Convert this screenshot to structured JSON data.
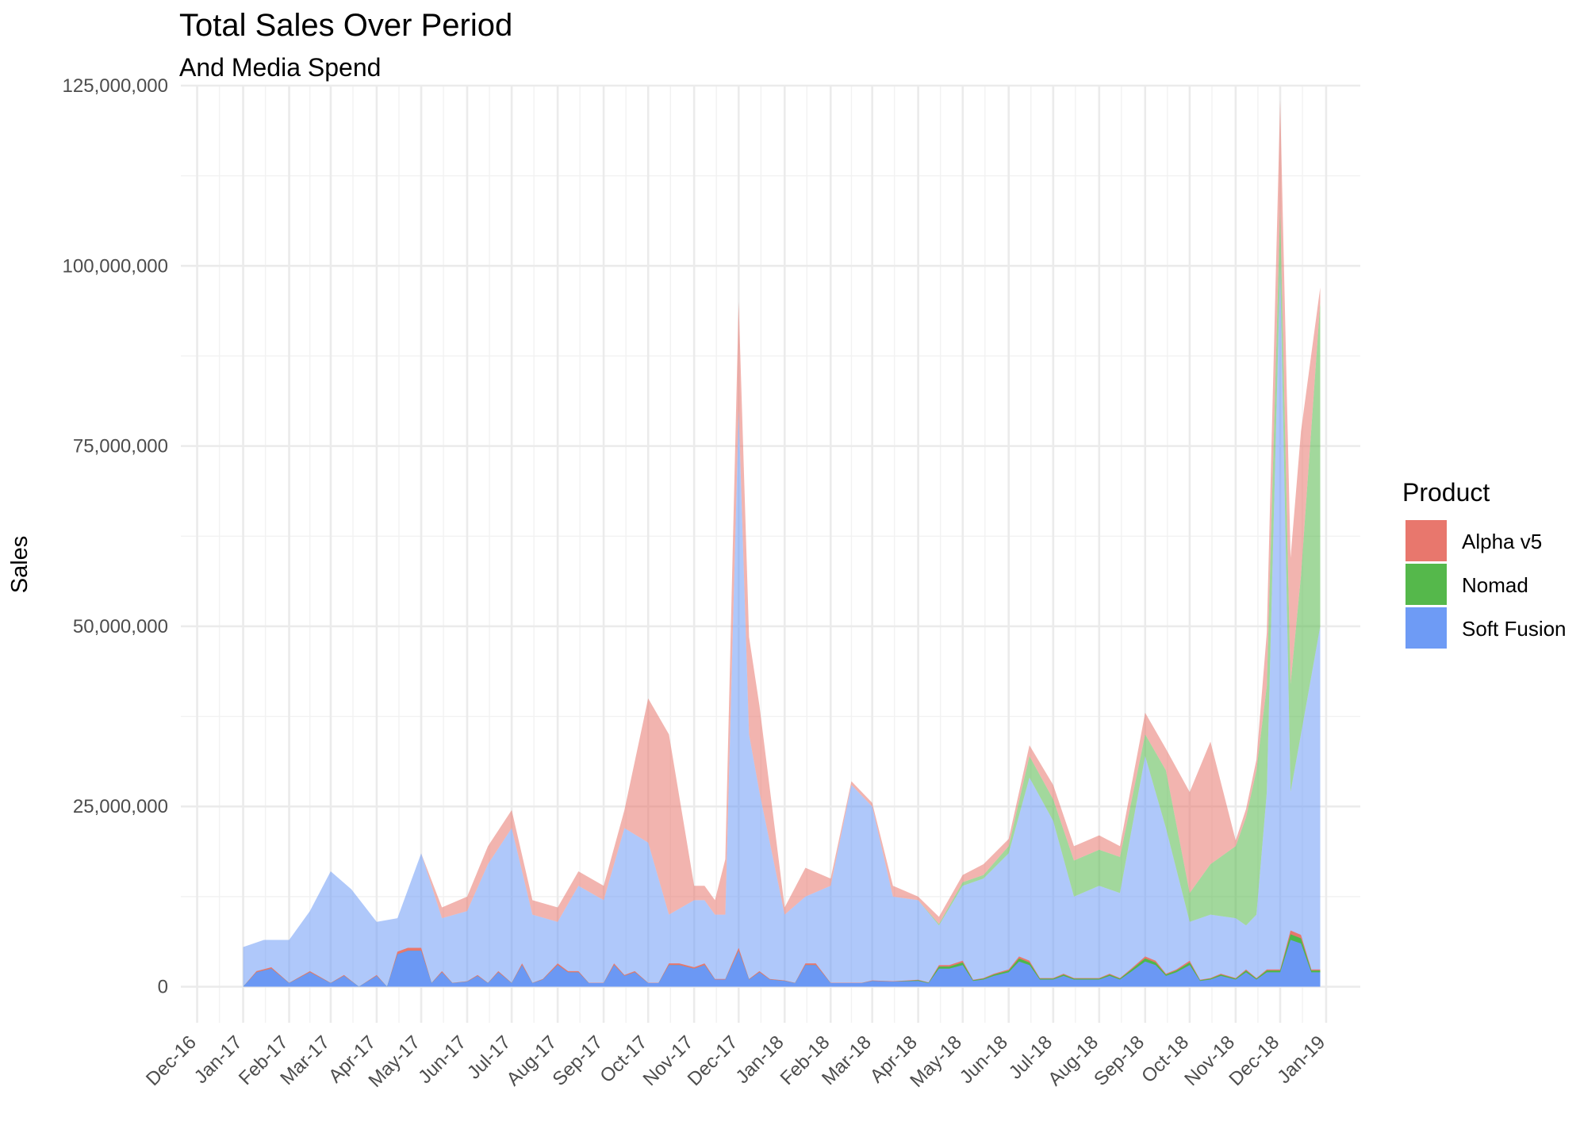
{
  "chart_data": {
    "type": "area",
    "title": "Total Sales Over Period",
    "subtitle": "And Media Spend",
    "xlabel": "",
    "ylabel": "Sales",
    "ylim": [
      -5000000,
      125000000
    ],
    "y_ticks": [
      0,
      25000000,
      50000000,
      75000000,
      100000000,
      125000000
    ],
    "y_tick_labels": [
      "0",
      "25,000,000",
      "50,000,000",
      "75,000,000",
      "100,000,000",
      "125,000,000"
    ],
    "x_ticks": [
      "2016-12-01",
      "2017-01-01",
      "2017-02-01",
      "2017-03-01",
      "2017-04-01",
      "2017-05-01",
      "2017-06-01",
      "2017-07-01",
      "2017-08-01",
      "2017-09-01",
      "2017-10-01",
      "2017-11-01",
      "2017-12-01",
      "2018-01-01",
      "2018-02-01",
      "2018-03-01",
      "2018-04-01",
      "2018-05-01",
      "2018-06-01",
      "2018-07-01",
      "2018-08-01",
      "2018-09-01",
      "2018-10-01",
      "2018-11-01",
      "2018-12-01",
      "2019-01-01"
    ],
    "x_tick_labels": [
      "Dec-16",
      "Jan-17",
      "Feb-17",
      "Mar-17",
      "Apr-17",
      "May-17",
      "Jun-17",
      "Jul-17",
      "Aug-17",
      "Sep-17",
      "Oct-17",
      "Nov-17",
      "Dec-17",
      "Jan-18",
      "Feb-18",
      "Mar-18",
      "Apr-18",
      "May-18",
      "Jun-18",
      "Jul-18",
      "Aug-18",
      "Sep-18",
      "Oct-18",
      "Nov-18",
      "Dec-18",
      "Jan-19"
    ],
    "grid": true,
    "stacked": true,
    "legend": {
      "title": "Product",
      "position": "right"
    },
    "series": [
      {
        "name": "Alpha v5",
        "color": "#e8776d",
        "fill_opacity": 0.55,
        "x": [
          "2017-01-01",
          "2017-03-01",
          "2017-05-01",
          "2017-05-15",
          "2017-06-01",
          "2017-06-15",
          "2017-07-01",
          "2017-07-15",
          "2017-08-01",
          "2017-08-15",
          "2017-09-01",
          "2017-09-15",
          "2017-10-01",
          "2017-10-15",
          "2017-11-01",
          "2017-11-15",
          "2017-12-01",
          "2017-12-15",
          "2018-01-01",
          "2018-01-15",
          "2018-02-01",
          "2018-02-15",
          "2018-03-01",
          "2018-03-15",
          "2018-04-01",
          "2018-04-15",
          "2018-05-01",
          "2018-05-15",
          "2018-06-01",
          "2018-06-15",
          "2018-07-01",
          "2018-07-15",
          "2018-08-01",
          "2018-08-15",
          "2018-09-01",
          "2018-09-15",
          "2018-10-01",
          "2018-10-15",
          "2018-11-01",
          "2018-11-15",
          "2018-12-01",
          "2018-12-15",
          "2018-12-28"
        ],
        "y": [
          0,
          0,
          0,
          1500000,
          2000000,
          2500000,
          2500000,
          2000000,
          2000000,
          2000000,
          2000000,
          2500000,
          20000000,
          25000000,
          2000000,
          2000000,
          15000000,
          12000000,
          1000000,
          4000000,
          1000000,
          500000,
          500000,
          1500000,
          500000,
          1000000,
          1000000,
          1500000,
          1000000,
          1500000,
          2000000,
          2000000,
          2000000,
          1500000,
          3000000,
          3000000,
          14000000,
          17000000,
          800000,
          1500000,
          15000000,
          20000000,
          2000000
        ]
      },
      {
        "name": "Nomad",
        "color": "#55b84b",
        "fill_opacity": 0.55,
        "x": [
          "2017-01-01",
          "2018-04-01",
          "2018-04-15",
          "2018-05-01",
          "2018-05-15",
          "2018-06-01",
          "2018-06-15",
          "2018-07-01",
          "2018-07-15",
          "2018-08-01",
          "2018-08-15",
          "2018-09-01",
          "2018-09-15",
          "2018-10-01",
          "2018-10-15",
          "2018-11-01",
          "2018-11-15",
          "2018-12-01",
          "2018-12-15",
          "2018-12-28"
        ],
        "y": [
          0,
          0,
          200000,
          500000,
          500000,
          1000000,
          3000000,
          3000000,
          5000000,
          5000000,
          5000000,
          3000000,
          8000000,
          4000000,
          7000000,
          10000000,
          20000000,
          8000000,
          22000000,
          45000000
        ]
      },
      {
        "name": "Soft Fusion",
        "color": "#6e9bf5",
        "fill_opacity": 0.55,
        "x": [
          "2017-01-01",
          "2017-01-15",
          "2017-02-01",
          "2017-02-15",
          "2017-03-01",
          "2017-03-15",
          "2017-04-01",
          "2017-04-15",
          "2017-05-01",
          "2017-05-15",
          "2017-06-01",
          "2017-06-15",
          "2017-07-01",
          "2017-07-15",
          "2017-08-01",
          "2017-08-15",
          "2017-09-01",
          "2017-09-15",
          "2017-10-01",
          "2017-10-15",
          "2017-11-01",
          "2017-11-08",
          "2017-11-15",
          "2017-11-22",
          "2017-12-01",
          "2017-12-08",
          "2017-12-15",
          "2018-01-01",
          "2018-01-15",
          "2018-02-01",
          "2018-02-15",
          "2018-03-01",
          "2018-03-15",
          "2018-04-01",
          "2018-04-15",
          "2018-05-01",
          "2018-05-15",
          "2018-06-01",
          "2018-06-15",
          "2018-07-01",
          "2018-07-15",
          "2018-08-01",
          "2018-08-15",
          "2018-09-01",
          "2018-09-15",
          "2018-10-01",
          "2018-10-15",
          "2018-11-01",
          "2018-11-08",
          "2018-11-15",
          "2018-11-22",
          "2018-12-01",
          "2018-12-08",
          "2018-12-15",
          "2018-12-28"
        ],
        "y": [
          5500000,
          6500000,
          6500000,
          10500000,
          16000000,
          13500000,
          9000000,
          9500000,
          18500000,
          9500000,
          10500000,
          17000000,
          22000000,
          10000000,
          9000000,
          14000000,
          12000000,
          22000000,
          20000000,
          10000000,
          12000000,
          12000000,
          10000000,
          10000000,
          80000000,
          35000000,
          27000000,
          10000000,
          12500000,
          14000000,
          28000000,
          25000000,
          12500000,
          12000000,
          8500000,
          14000000,
          15000000,
          18500000,
          29000000,
          23000000,
          12500000,
          14000000,
          13000000,
          32000000,
          22000000,
          9000000,
          10000000,
          9500000,
          8500000,
          10000000,
          27000000,
          100000000,
          27000000,
          35000000,
          50000000
        ]
      }
    ],
    "media_spend": {
      "name": "Soft Fusion",
      "x": [
        "2017-01-01",
        "2017-01-10",
        "2017-01-20",
        "2017-02-01",
        "2017-02-15",
        "2017-03-01",
        "2017-03-10",
        "2017-03-20",
        "2017-04-01",
        "2017-04-08",
        "2017-04-15",
        "2017-04-22",
        "2017-05-01",
        "2017-05-08",
        "2017-05-15",
        "2017-05-22",
        "2017-06-01",
        "2017-06-08",
        "2017-06-15",
        "2017-06-22",
        "2017-07-01",
        "2017-07-08",
        "2017-07-15",
        "2017-07-22",
        "2017-08-01",
        "2017-08-08",
        "2017-08-15",
        "2017-08-22",
        "2017-09-01",
        "2017-09-08",
        "2017-09-15",
        "2017-09-22",
        "2017-10-01",
        "2017-10-08",
        "2017-10-15",
        "2017-10-22",
        "2017-11-01",
        "2017-11-08",
        "2017-11-15",
        "2017-11-22",
        "2017-12-01",
        "2017-12-08",
        "2017-12-15",
        "2017-12-22",
        "2018-01-01",
        "2018-01-08",
        "2018-01-15",
        "2018-01-22",
        "2018-02-01",
        "2018-02-08",
        "2018-02-15",
        "2018-02-22",
        "2018-03-01",
        "2018-03-15",
        "2018-04-01",
        "2018-04-08",
        "2018-04-15",
        "2018-04-22",
        "2018-05-01",
        "2018-05-08",
        "2018-05-15",
        "2018-05-22",
        "2018-06-01",
        "2018-06-08",
        "2018-06-15",
        "2018-06-22",
        "2018-07-01",
        "2018-07-08",
        "2018-07-15",
        "2018-07-22",
        "2018-08-01",
        "2018-08-08",
        "2018-08-15",
        "2018-08-22",
        "2018-09-01",
        "2018-09-08",
        "2018-09-15",
        "2018-09-22",
        "2018-10-01",
        "2018-10-08",
        "2018-10-15",
        "2018-10-22",
        "2018-11-01",
        "2018-11-08",
        "2018-11-15",
        "2018-11-22",
        "2018-12-01",
        "2018-12-08",
        "2018-12-15",
        "2018-12-22",
        "2018-12-28"
      ],
      "y": [
        0,
        2000000,
        2500000,
        500000,
        2000000,
        500000,
        1500000,
        0,
        1500000,
        0,
        4500000,
        5000000,
        5000000,
        500000,
        2000000,
        500000,
        700000,
        1500000,
        500000,
        2000000,
        500000,
        3000000,
        500000,
        1000000,
        3000000,
        2000000,
        2000000,
        500000,
        500000,
        3000000,
        1500000,
        2000000,
        500000,
        500000,
        3000000,
        3000000,
        2500000,
        3000000,
        1000000,
        1000000,
        5000000,
        1000000,
        2000000,
        1000000,
        800000,
        500000,
        3000000,
        3000000,
        500000,
        500000,
        500000,
        500000,
        800000,
        700000,
        800000,
        500000,
        2500000,
        2500000,
        3000000,
        800000,
        1000000,
        1500000,
        2000000,
        3500000,
        3000000,
        1000000,
        1000000,
        1500000,
        1000000,
        1000000,
        1000000,
        1500000,
        1000000,
        2000000,
        3500000,
        3000000,
        1500000,
        2000000,
        3000000,
        800000,
        1000000,
        1500000,
        1000000,
        2000000,
        1000000,
        2000000,
        2000000,
        6500000,
        6000000,
        2000000,
        2000000
      ]
    }
  }
}
